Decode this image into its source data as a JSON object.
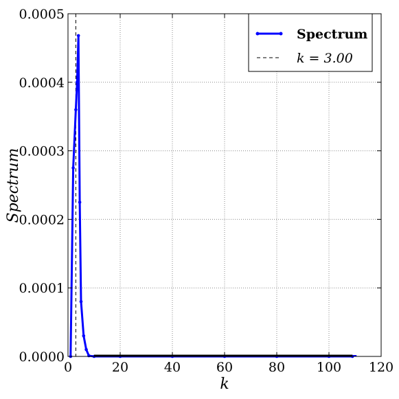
{
  "chart_data": {
    "type": "line",
    "xlabel": "k",
    "ylabel": "Spectrum",
    "xlim": [
      0,
      120
    ],
    "ylim": [
      0,
      0.0005
    ],
    "x_ticks": [
      "0",
      "20",
      "40",
      "60",
      "80",
      "100",
      "120"
    ],
    "y_ticks": [
      "0.0000",
      "0.0001",
      "0.0002",
      "0.0003",
      "0.0004",
      "0.0005"
    ],
    "grid": true,
    "legend_placement": "top-right",
    "series": [
      {
        "name": "Spectrum",
        "color": "#0000ff",
        "style": "solid-line-with-dot-markers",
        "x": [
          1,
          2,
          3,
          3.5,
          4,
          4.5,
          5,
          6,
          7,
          8,
          10,
          20,
          40,
          60,
          80,
          100,
          109
        ],
        "y": [
          0.0,
          0.000275,
          0.00036,
          0.0004,
          0.000468,
          0.000225,
          8e-05,
          3e-05,
          1e-05,
          1e-06,
          0.0,
          0.0,
          0.0,
          0.0,
          0.0,
          0.0,
          0.0
        ]
      }
    ],
    "annotations": [
      {
        "name": "k = 3.00",
        "type": "vertical-line",
        "x": 3.0,
        "color": "#000000",
        "style": "dashed"
      }
    ]
  }
}
